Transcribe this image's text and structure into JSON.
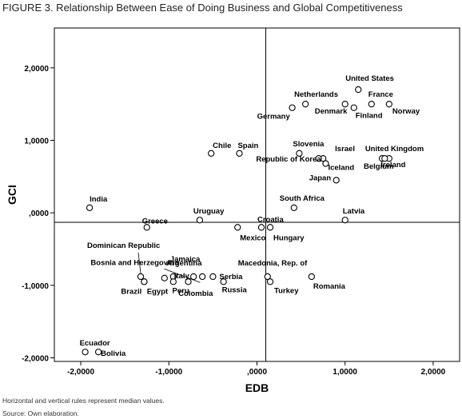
{
  "figure": {
    "title": "FIGURE 3. Relationship Between Ease of Doing Business and Global Competitiveness",
    "notes": [
      "Horizontal and vertical rules represent median values.",
      "Source: Own elaboration."
    ]
  },
  "chart_data": {
    "type": "scatter",
    "title": "",
    "xlabel": "EDB",
    "ylabel": "GCI",
    "xlim": [
      -2.3,
      2.3
    ],
    "ylim": [
      -2.05,
      2.55
    ],
    "xticks": [
      -2,
      -1,
      0,
      1,
      2
    ],
    "xtick_labels": [
      "-2,0000",
      "-1,0000",
      ",0000",
      "1,0000",
      "2,0000"
    ],
    "yticks": [
      -2,
      -1,
      0,
      1,
      2
    ],
    "ytick_labels": [
      "-2,0000",
      "-1,0000",
      ",0000",
      "1,0000",
      "2,0000"
    ],
    "median_lines": {
      "x": 0.1,
      "y": -0.13
    },
    "points": [
      {
        "label": "United States",
        "x": 1.15,
        "y": 1.7
      },
      {
        "label": "Netherlands",
        "x": 0.55,
        "y": 1.5
      },
      {
        "label": "France",
        "x": 1.3,
        "y": 1.5
      },
      {
        "label": "Norway",
        "x": 1.5,
        "y": 1.5
      },
      {
        "label": "Denmark",
        "x": 1.0,
        "y": 1.5
      },
      {
        "label": "Finland",
        "x": 1.1,
        "y": 1.45
      },
      {
        "label": "Germany",
        "x": 0.4,
        "y": 1.45
      },
      {
        "label": "Chile",
        "x": -0.52,
        "y": 0.82
      },
      {
        "label": "Spain",
        "x": -0.2,
        "y": 0.82
      },
      {
        "label": "Slovenia",
        "x": 0.48,
        "y": 0.82
      },
      {
        "label": "Israel",
        "x": 0.75,
        "y": 0.75
      },
      {
        "label": "Republic of Korea",
        "x": 0.7,
        "y": 0.75
      },
      {
        "label": "Iceland",
        "x": 0.78,
        "y": 0.68
      },
      {
        "label": "United Kingdom",
        "x": 1.5,
        "y": 0.75
      },
      {
        "label": "Belgium",
        "x": 1.42,
        "y": 0.75
      },
      {
        "label": "Ireland",
        "x": 1.45,
        "y": 0.75
      },
      {
        "label": "Japan",
        "x": 0.9,
        "y": 0.45
      },
      {
        "label": "India",
        "x": -1.9,
        "y": 0.07
      },
      {
        "label": "South Africa",
        "x": 0.42,
        "y": 0.07
      },
      {
        "label": "Uruguay",
        "x": -0.65,
        "y": -0.1
      },
      {
        "label": "Greece",
        "x": -1.25,
        "y": -0.2
      },
      {
        "label": "Croatia",
        "x": 0.05,
        "y": -0.2
      },
      {
        "label": "Mexico",
        "x": -0.22,
        "y": -0.2
      },
      {
        "label": "Hungary",
        "x": 0.15,
        "y": -0.2
      },
      {
        "label": "Latvia",
        "x": 1.0,
        "y": -0.1
      },
      {
        "label": "Dominican Republic",
        "x": -1.32,
        "y": -0.88
      },
      {
        "label": "Bosnia and Herzegovina",
        "x": -1.28,
        "y": -0.95
      },
      {
        "label": "Jamaica",
        "x": -0.95,
        "y": -0.88
      },
      {
        "label": "Italy",
        "x": -1.05,
        "y": -0.9
      },
      {
        "label": "Argentina",
        "x": -0.72,
        "y": -0.88
      },
      {
        "label": "Serbia",
        "x": -0.5,
        "y": -0.88
      },
      {
        "label": "Brazil",
        "x": -1.28,
        "y": -0.95
      },
      {
        "label": "Egypt",
        "x": -0.95,
        "y": -0.95
      },
      {
        "label": "Peru",
        "x": -0.78,
        "y": -0.95
      },
      {
        "label": "Colombia",
        "x": -0.62,
        "y": -0.88
      },
      {
        "label": "Russia",
        "x": -0.38,
        "y": -0.95
      },
      {
        "label": "Macedonia, Rep. of",
        "x": 0.12,
        "y": -0.88
      },
      {
        "label": "Turkey",
        "x": 0.15,
        "y": -0.95
      },
      {
        "label": "Romania",
        "x": 0.62,
        "y": -0.88
      },
      {
        "label": "Ecuador",
        "x": -1.95,
        "y": -1.92
      },
      {
        "label": "Bolivia",
        "x": -1.8,
        "y": -1.92
      }
    ]
  }
}
